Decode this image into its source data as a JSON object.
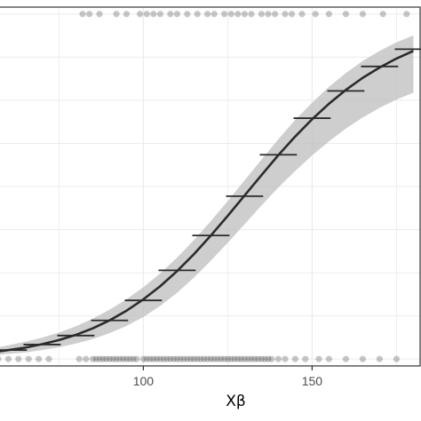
{
  "chart_data": {
    "type": "line",
    "title": "",
    "xlabel": "Xβ",
    "ylabel": "",
    "x_ticks": [
      100,
      150
    ],
    "x_tick_labels": [
      "100",
      "150"
    ],
    "xlim": [
      57,
      182
    ],
    "ylim": [
      -0.02,
      1.02
    ],
    "grid": true,
    "legend": "none",
    "curve": {
      "x": [
        57,
        60,
        65,
        70,
        75,
        80,
        85,
        90,
        95,
        100,
        105,
        110,
        115,
        120,
        125,
        130,
        135,
        140,
        145,
        150,
        155,
        160,
        165,
        170,
        175,
        180
      ],
      "y": [
        0.022,
        0.026,
        0.033,
        0.043,
        0.055,
        0.07,
        0.089,
        0.112,
        0.14,
        0.173,
        0.211,
        0.255,
        0.304,
        0.358,
        0.415,
        0.474,
        0.533,
        0.591,
        0.645,
        0.695,
        0.74,
        0.78,
        0.815,
        0.845,
        0.871,
        0.893
      ],
      "lower": [
        0.012,
        0.015,
        0.019,
        0.026,
        0.034,
        0.045,
        0.058,
        0.075,
        0.096,
        0.122,
        0.154,
        0.192,
        0.236,
        0.285,
        0.337,
        0.391,
        0.445,
        0.497,
        0.545,
        0.59,
        0.631,
        0.668,
        0.7,
        0.728,
        0.752,
        0.772
      ],
      "upper": [
        0.034,
        0.04,
        0.05,
        0.062,
        0.077,
        0.095,
        0.117,
        0.143,
        0.173,
        0.208,
        0.248,
        0.294,
        0.345,
        0.4,
        0.458,
        0.518,
        0.578,
        0.637,
        0.693,
        0.743,
        0.789,
        0.829,
        0.864,
        0.893,
        0.918,
        0.938
      ]
    },
    "binned_means": {
      "x_center": [
        60,
        70,
        80,
        90,
        100,
        110,
        120,
        130,
        140,
        150,
        160,
        170,
        180
      ],
      "half_width": 5.5,
      "y": [
        0.026,
        0.042,
        0.068,
        0.112,
        0.17,
        0.257,
        0.358,
        0.472,
        0.592,
        0.698,
        0.777,
        0.848,
        0.898
      ]
    },
    "observations": {
      "y1_x": [
        82,
        84,
        87,
        92,
        95,
        99,
        101,
        103,
        105,
        108,
        110,
        113,
        116,
        119,
        121,
        124,
        126,
        128,
        130,
        132,
        135,
        137,
        139,
        142,
        144,
        147,
        151,
        155,
        160,
        165,
        171,
        178
      ],
      "y0_x": [
        57,
        60,
        63,
        66,
        69,
        72,
        81,
        83,
        85,
        86,
        87,
        88,
        89,
        90,
        91,
        92,
        93,
        94,
        95,
        96,
        97,
        98,
        100,
        101,
        102,
        103,
        104,
        105,
        106,
        107,
        108,
        109,
        110,
        111,
        112,
        113,
        114,
        115,
        116,
        117,
        118,
        119,
        120,
        121,
        122,
        123,
        124,
        125,
        126,
        127,
        128,
        129,
        130,
        131,
        132,
        133,
        134,
        135,
        136,
        137,
        138,
        140,
        142,
        145,
        148,
        152,
        155,
        160,
        165,
        170,
        175
      ]
    }
  },
  "colors": {
    "background": "#ffffff",
    "grid": "#ebebeb",
    "panel_border": "#333333",
    "ribbon": "#bebebe",
    "line": "#2b2b2b",
    "points": "#000000"
  }
}
